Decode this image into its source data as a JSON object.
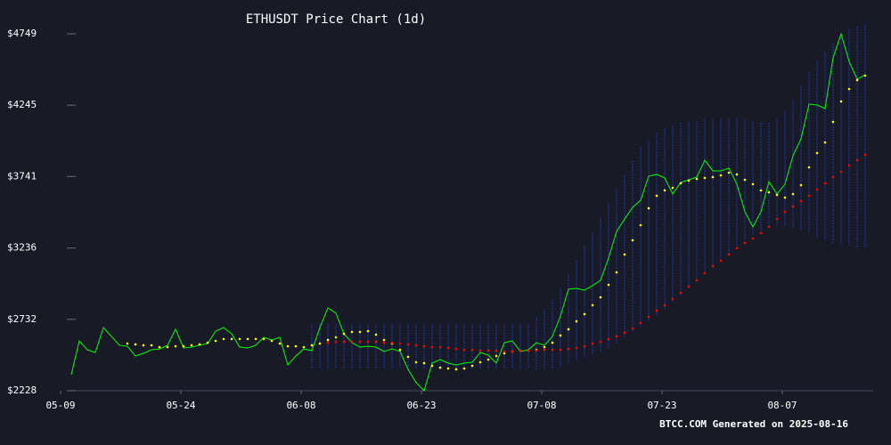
{
  "chart_data": {
    "type": "line",
    "title": "ETHUSDT Price Chart (1d)",
    "footer": "BTCC.COM Generated on 2025-08-16",
    "x": [
      "05-09",
      "05-10",
      "05-11",
      "05-12",
      "05-13",
      "05-14",
      "05-15",
      "05-16",
      "05-17",
      "05-18",
      "05-19",
      "05-20",
      "05-21",
      "05-22",
      "05-23",
      "05-24",
      "05-25",
      "05-26",
      "05-27",
      "05-28",
      "05-29",
      "05-30",
      "05-31",
      "06-01",
      "06-02",
      "06-03",
      "06-04",
      "06-05",
      "06-06",
      "06-07",
      "06-08",
      "06-09",
      "06-10",
      "06-11",
      "06-12",
      "06-13",
      "06-14",
      "06-15",
      "06-16",
      "06-17",
      "06-18",
      "06-19",
      "06-20",
      "06-21",
      "06-22",
      "06-23",
      "06-24",
      "06-25",
      "06-26",
      "06-27",
      "06-28",
      "06-29",
      "06-30",
      "07-01",
      "07-02",
      "07-03",
      "07-04",
      "07-05",
      "07-06",
      "07-07",
      "07-08",
      "07-09",
      "07-10",
      "07-11",
      "07-12",
      "07-13",
      "07-14",
      "07-15",
      "07-16",
      "07-17",
      "07-18",
      "07-19",
      "07-20",
      "07-21",
      "07-22",
      "07-23",
      "07-24",
      "07-25",
      "07-26",
      "07-27",
      "07-28",
      "07-29",
      "07-30",
      "07-31",
      "08-01",
      "08-02",
      "08-03",
      "08-04",
      "08-05",
      "08-06",
      "08-07",
      "08-08",
      "08-09",
      "08-10",
      "08-11",
      "08-12",
      "08-13",
      "08-14",
      "08-15",
      "08-16"
    ],
    "xticks": [
      "05-09",
      "05-24",
      "06-08",
      "06-23",
      "07-08",
      "07-23",
      "08-07"
    ],
    "ylim": [
      2228,
      4749
    ],
    "yticks": [
      {
        "value": 2228,
        "label": "$2228"
      },
      {
        "value": 2732,
        "label": "$2732"
      },
      {
        "value": 3236,
        "label": "$3236"
      },
      {
        "value": 3741,
        "label": "$3741"
      },
      {
        "value": 4245,
        "label": "$4245"
      },
      {
        "value": 4749,
        "label": "$4749"
      }
    ],
    "band": {
      "color": "#1c2e8c",
      "upper": [
        null,
        null,
        null,
        null,
        null,
        null,
        null,
        null,
        null,
        null,
        null,
        null,
        null,
        null,
        null,
        null,
        null,
        null,
        null,
        null,
        null,
        null,
        null,
        null,
        null,
        null,
        null,
        null,
        null,
        null,
        2700,
        2700,
        2700,
        2700,
        2700,
        2700,
        2700,
        2700,
        2700,
        2700,
        2700,
        2700,
        2700,
        2700,
        2700,
        2700,
        2700,
        2700,
        2700,
        2700,
        2700,
        2700,
        2700,
        2700,
        2700,
        2700,
        2700,
        2700,
        2750,
        2800,
        2870,
        2950,
        3050,
        3150,
        3250,
        3350,
        3450,
        3550,
        3650,
        3750,
        3850,
        3950,
        4000,
        4050,
        4080,
        4100,
        4120,
        4130,
        4130,
        4140,
        4150,
        4150,
        4150,
        4150,
        4140,
        4130,
        4120,
        4120,
        4150,
        4200,
        4280,
        4380,
        4480,
        4560,
        4620,
        4680,
        4740,
        4780,
        4800,
        4820
      ],
      "lower": [
        null,
        null,
        null,
        null,
        null,
        null,
        null,
        null,
        null,
        null,
        null,
        null,
        null,
        null,
        null,
        null,
        null,
        null,
        null,
        null,
        null,
        null,
        null,
        null,
        null,
        null,
        null,
        null,
        null,
        null,
        2380,
        2380,
        2380,
        2380,
        2380,
        2380,
        2380,
        2380,
        2380,
        2380,
        2380,
        2380,
        2380,
        2380,
        2380,
        2380,
        2380,
        2380,
        2380,
        2380,
        2380,
        2380,
        2380,
        2380,
        2380,
        2380,
        2380,
        2380,
        2380,
        2380,
        2380,
        2400,
        2420,
        2440,
        2460,
        2480,
        2500,
        2530,
        2560,
        2600,
        2640,
        2680,
        2720,
        2760,
        2800,
        2850,
        2900,
        2950,
        3000,
        3050,
        3100,
        3150,
        3200,
        3250,
        3290,
        3330,
        3360,
        3380,
        3390,
        3390,
        3380,
        3360,
        3340,
        3310,
        3290,
        3270,
        3260,
        3250,
        3240,
        3240
      ]
    },
    "series": [
      {
        "color": "#00ff00",
        "marker": "line",
        "values": [
          2341,
          2580,
          2517,
          2498,
          2674,
          2612,
          2549,
          2542,
          2473,
          2492,
          2517,
          2523,
          2549,
          2662,
          2530,
          2536,
          2549,
          2561,
          2649,
          2674,
          2630,
          2536,
          2530,
          2549,
          2605,
          2586,
          2605,
          2410,
          2473,
          2523,
          2511,
          2674,
          2813,
          2775,
          2630,
          2567,
          2536,
          2542,
          2536,
          2505,
          2523,
          2505,
          2379,
          2285,
          2228,
          2423,
          2448,
          2423,
          2410,
          2423,
          2429,
          2498,
          2479,
          2423,
          2567,
          2580,
          2505,
          2517,
          2567,
          2549,
          2612,
          2756,
          2945,
          2951,
          2938,
          2970,
          3008,
          3165,
          3353,
          3441,
          3523,
          3573,
          3743,
          3756,
          3731,
          3617,
          3699,
          3718,
          3737,
          3856,
          3781,
          3781,
          3800,
          3687,
          3492,
          3385,
          3492,
          3705,
          3617,
          3687,
          3888,
          4007,
          4252,
          4246,
          4221,
          4579,
          4749,
          4554,
          4428,
          4460
        ]
      },
      {
        "color": "#ffff00",
        "marker": "dots",
        "values": [
          null,
          null,
          null,
          null,
          null,
          null,
          null,
          2561,
          2555,
          2549,
          2549,
          2536,
          2536,
          2542,
          2542,
          2549,
          2555,
          2567,
          2580,
          2593,
          2593,
          2593,
          2593,
          2593,
          2593,
          2580,
          2561,
          2542,
          2542,
          2536,
          2549,
          2561,
          2586,
          2605,
          2630,
          2643,
          2643,
          2649,
          2624,
          2586,
          2561,
          2517,
          2467,
          2429,
          2423,
          2404,
          2391,
          2385,
          2379,
          2385,
          2404,
          2429,
          2448,
          2473,
          2492,
          2505,
          2511,
          2511,
          2517,
          2536,
          2567,
          2618,
          2662,
          2718,
          2769,
          2832,
          2888,
          2976,
          3064,
          3190,
          3291,
          3397,
          3517,
          3605,
          3643,
          3661,
          3693,
          3712,
          3724,
          3731,
          3737,
          3749,
          3768,
          3756,
          3718,
          3687,
          3643,
          3630,
          3611,
          3592,
          3617,
          3680,
          3806,
          3907,
          3982,
          4127,
          4271,
          4359,
          4422,
          4454
        ]
      },
      {
        "color": "#ff0000",
        "marker": "dots",
        "values": [
          null,
          null,
          null,
          null,
          null,
          null,
          null,
          null,
          null,
          null,
          null,
          null,
          null,
          null,
          null,
          null,
          null,
          null,
          null,
          null,
          null,
          null,
          null,
          null,
          null,
          null,
          null,
          null,
          null,
          null,
          null,
          null,
          2567,
          2574,
          2574,
          2574,
          2574,
          2574,
          2574,
          2567,
          2567,
          2561,
          2555,
          2549,
          2542,
          2536,
          2536,
          2530,
          2523,
          2517,
          2517,
          2511,
          2511,
          2511,
          2505,
          2505,
          2511,
          2511,
          2511,
          2517,
          2517,
          2517,
          2523,
          2530,
          2542,
          2561,
          2574,
          2593,
          2612,
          2637,
          2668,
          2706,
          2750,
          2794,
          2832,
          2876,
          2920,
          2964,
          3008,
          3058,
          3108,
          3146,
          3190,
          3234,
          3272,
          3303,
          3341,
          3385,
          3441,
          3492,
          3529,
          3567,
          3605,
          3649,
          3693,
          3737,
          3775,
          3819,
          3856,
          3894
        ]
      }
    ]
  }
}
